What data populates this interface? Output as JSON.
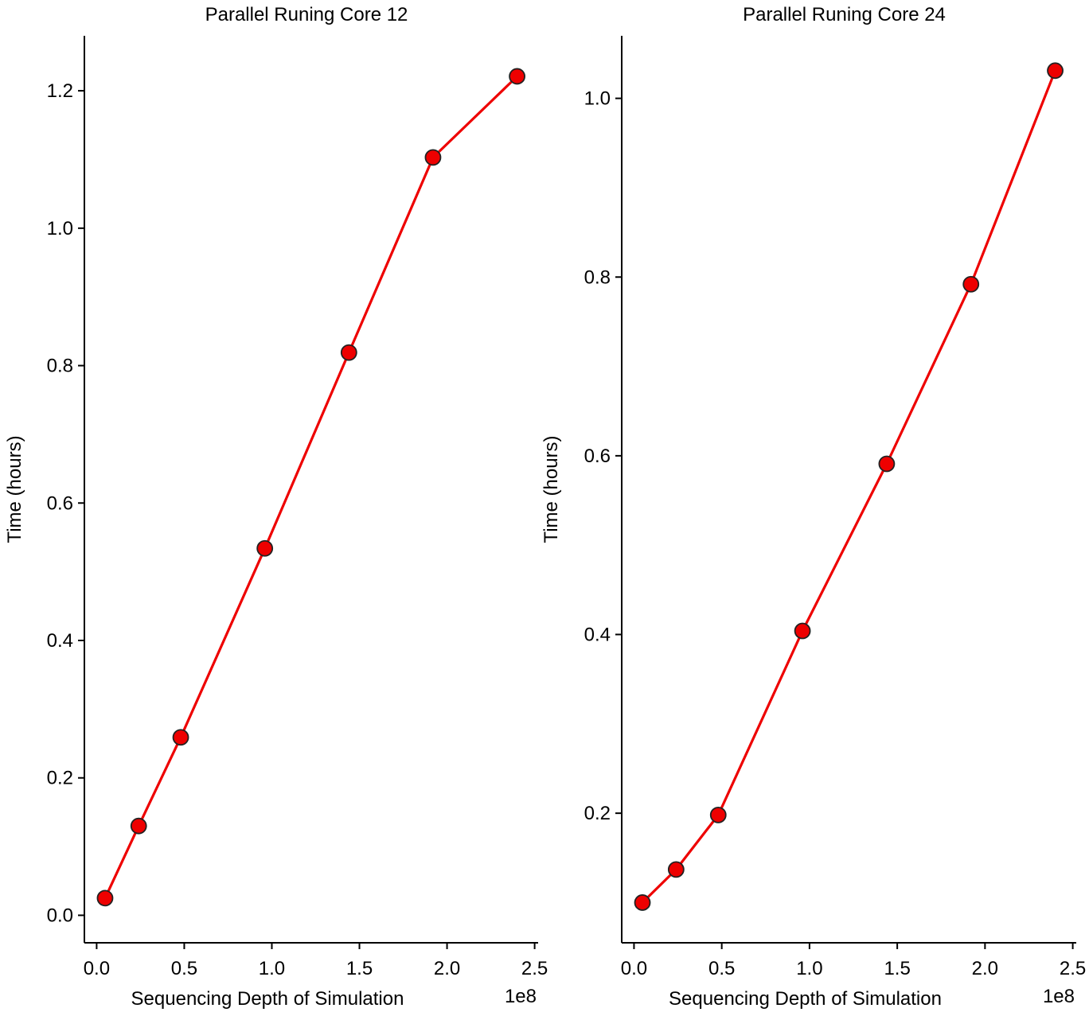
{
  "chart_data": [
    {
      "type": "line",
      "title": "Parallel Runing Core 12",
      "xlabel": "Sequencing Depth of Simulation",
      "ylabel": "Time (hours)",
      "x_offset_label": "1e8",
      "x": [
        0.048,
        0.24,
        0.48,
        0.96,
        1.44,
        1.92,
        2.4
      ],
      "series": [
        {
          "name": "Core 12",
          "color": "#ee0000",
          "marker_color": "#ee0000",
          "values": [
            0.025,
            0.13,
            0.259,
            0.534,
            0.819,
            1.103,
            1.221
          ]
        }
      ],
      "xlim": [
        -0.07,
        2.52
      ],
      "ylim": [
        -0.04,
        1.28
      ],
      "xticks": [
        0.0,
        0.5,
        1.0,
        1.5,
        2.0,
        2.5
      ],
      "xtick_labels": [
        "0.0",
        "0.5",
        "1.0",
        "1.5",
        "2.0",
        "2.5"
      ],
      "yticks": [
        0.0,
        0.2,
        0.4,
        0.6,
        0.8,
        1.0,
        1.2
      ],
      "ytick_labels": [
        "0.0",
        "0.2",
        "0.4",
        "0.6",
        "0.8",
        "1.0",
        "1.2"
      ],
      "grid": false
    },
    {
      "type": "line",
      "title": "Parallel Runing Core 24",
      "xlabel": "Sequencing Depth of Simulation",
      "ylabel": "Time (hours)",
      "x_offset_label": "1e8",
      "x": [
        0.048,
        0.24,
        0.48,
        0.96,
        1.44,
        1.92,
        2.4
      ],
      "series": [
        {
          "name": "Core 24",
          "color": "#ee0000",
          "marker_color": "#ee0000",
          "values": [
            0.1,
            0.137,
            0.198,
            0.404,
            0.591,
            0.792,
            1.031
          ]
        }
      ],
      "xlim": [
        -0.07,
        2.52
      ],
      "ylim": [
        0.055,
        1.07
      ],
      "xticks": [
        0.0,
        0.5,
        1.0,
        1.5,
        2.0,
        2.5
      ],
      "xtick_labels": [
        "0.0",
        "0.5",
        "1.0",
        "1.5",
        "2.0",
        "2.5"
      ],
      "yticks": [
        0.2,
        0.4,
        0.6,
        0.8,
        1.0
      ],
      "ytick_labels": [
        "0.2",
        "0.4",
        "0.6",
        "0.8",
        "1.0"
      ],
      "grid": false
    }
  ]
}
